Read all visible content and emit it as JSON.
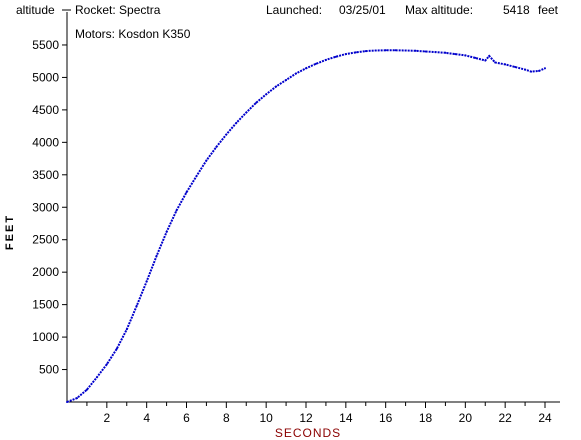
{
  "header": {
    "series_label": "altitude",
    "rocket": "Rocket: Spectra",
    "launched_label": "Launched:",
    "launched_date": "03/25/01",
    "max_alt_label": "Max altitude:",
    "max_alt_value": "5418",
    "max_alt_unit": "feet",
    "motors": "Motors:  Kosdon K350"
  },
  "chart_data": {
    "type": "line",
    "xlabel": "SECONDS",
    "ylabel": "FEET",
    "xlim": [
      0,
      24
    ],
    "ylim": [
      0,
      5900
    ],
    "x_ticks": [
      "2",
      "4",
      "6",
      "8",
      "10",
      "12",
      "14",
      "16",
      "18",
      "20",
      "22",
      "24"
    ],
    "y_ticks": [
      "500",
      "1000",
      "1500",
      "2000",
      "2500",
      "3000",
      "3500",
      "4000",
      "4500",
      "5000",
      "5500"
    ],
    "series": [
      {
        "name": "altitude",
        "color": "#0000cc",
        "x": [
          0,
          0.5,
          1,
          1.5,
          2,
          2.5,
          3,
          3.5,
          4,
          4.5,
          5,
          5.5,
          6,
          6.5,
          7,
          7.5,
          8,
          8.5,
          9,
          9.5,
          10,
          10.5,
          11,
          11.5,
          12,
          12.5,
          13,
          13.5,
          14,
          14.5,
          15,
          15.5,
          16,
          16.5,
          17,
          17.5,
          18,
          18.5,
          19,
          19.5,
          20,
          20.5,
          21,
          21.2,
          21.5,
          22,
          22.5,
          23,
          23.3,
          23.7,
          24
        ],
        "y": [
          0,
          60,
          190,
          380,
          580,
          820,
          1120,
          1480,
          1860,
          2250,
          2620,
          2950,
          3230,
          3480,
          3720,
          3930,
          4120,
          4300,
          4460,
          4610,
          4740,
          4860,
          4960,
          5060,
          5140,
          5210,
          5270,
          5320,
          5360,
          5385,
          5405,
          5415,
          5418,
          5418,
          5415,
          5410,
          5400,
          5390,
          5380,
          5360,
          5340,
          5300,
          5260,
          5330,
          5230,
          5200,
          5160,
          5120,
          5090,
          5100,
          5140
        ]
      }
    ],
    "grid": false,
    "axis_color": "#000000",
    "xlabel_color": "#8b0000"
  }
}
